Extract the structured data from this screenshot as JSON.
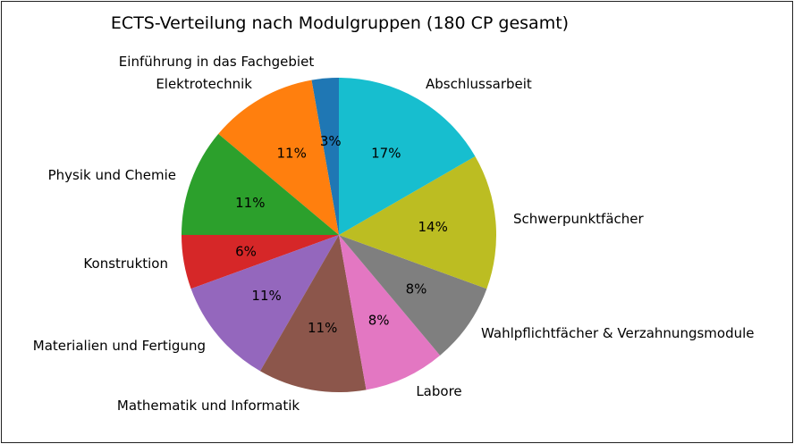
{
  "chart_data": {
    "type": "pie",
    "title": "ECTS-Verteilung nach Modulgruppen (180 CP gesamt)",
    "start_angle_deg": 90,
    "direction": "counterclockwise",
    "slices": [
      {
        "label": "Einführung in das Fachgebiet",
        "value": 5,
        "pct_label": "3%",
        "color": "#1f77b4"
      },
      {
        "label": "Elektrotechnik",
        "value": 20,
        "pct_label": "11%",
        "color": "#ff7f0e"
      },
      {
        "label": "Physik und Chemie",
        "value": 20,
        "pct_label": "11%",
        "color": "#2ca02c"
      },
      {
        "label": "Konstruktion",
        "value": 10,
        "pct_label": "6%",
        "color": "#d62728"
      },
      {
        "label": "Materialien und Fertigung",
        "value": 20,
        "pct_label": "11%",
        "color": "#9467bd"
      },
      {
        "label": "Mathematik und Informatik",
        "value": 20,
        "pct_label": "11%",
        "color": "#8c564b"
      },
      {
        "label": "Labore",
        "value": 15,
        "pct_label": "8%",
        "color": "#e377c2"
      },
      {
        "label": "Wahlpflichtfächer & Verzahnungsmodule",
        "value": 15,
        "pct_label": "8%",
        "color": "#7f7f7f"
      },
      {
        "label": "Schwerpunktfächer",
        "value": 25,
        "pct_label": "14%",
        "color": "#bcbd22"
      },
      {
        "label": "Abschlussarbeit",
        "value": 30,
        "pct_label": "17%",
        "color": "#17becf"
      }
    ]
  }
}
